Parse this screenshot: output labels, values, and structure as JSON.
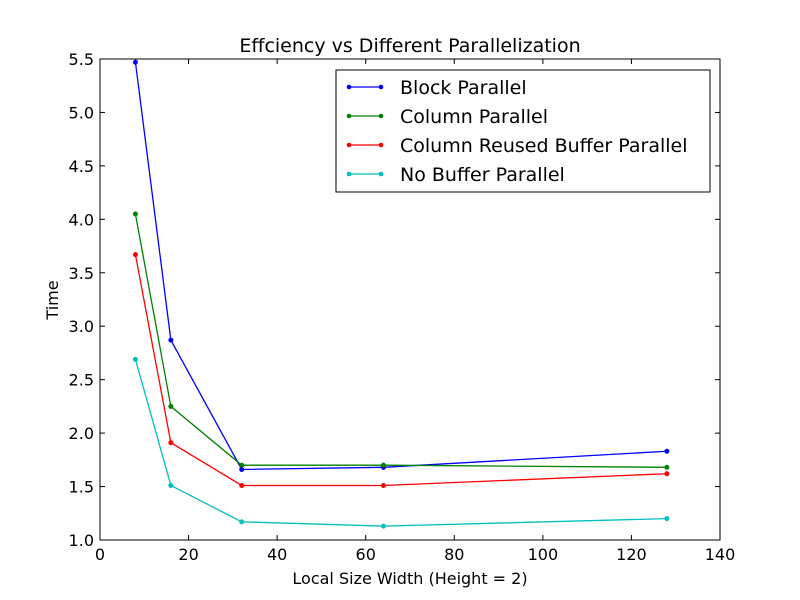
{
  "chart_data": {
    "type": "line",
    "title": "Effciency vs Different Parallelization",
    "xlabel": "Local Size Width (Height = 2)",
    "ylabel": "Time",
    "xlim": [
      0,
      140
    ],
    "ylim": [
      1.0,
      5.5
    ],
    "xticks": [
      "0",
      "20",
      "40",
      "60",
      "80",
      "100",
      "120",
      "140"
    ],
    "yticks": [
      "1.0",
      "1.5",
      "2.0",
      "2.5",
      "3.0",
      "3.5",
      "4.0",
      "4.5",
      "5.0",
      "5.5"
    ],
    "grid": false,
    "legend_position": "top-right",
    "x": [
      8,
      16,
      32,
      64,
      128
    ],
    "series": [
      {
        "name": "Block Parallel",
        "color": "#0000ff",
        "values": [
          5.47,
          2.87,
          1.66,
          1.68,
          1.83
        ]
      },
      {
        "name": "Column Parallel",
        "color": "#008000",
        "values": [
          4.05,
          2.25,
          1.7,
          1.7,
          1.68
        ]
      },
      {
        "name": "Column Reused Buffer Parallel",
        "color": "#ff0000",
        "values": [
          3.67,
          1.91,
          1.51,
          1.51,
          1.62
        ]
      },
      {
        "name": "No Buffer Parallel",
        "color": "#00bfbf",
        "values": [
          2.69,
          1.51,
          1.17,
          1.13,
          1.2
        ]
      }
    ]
  }
}
